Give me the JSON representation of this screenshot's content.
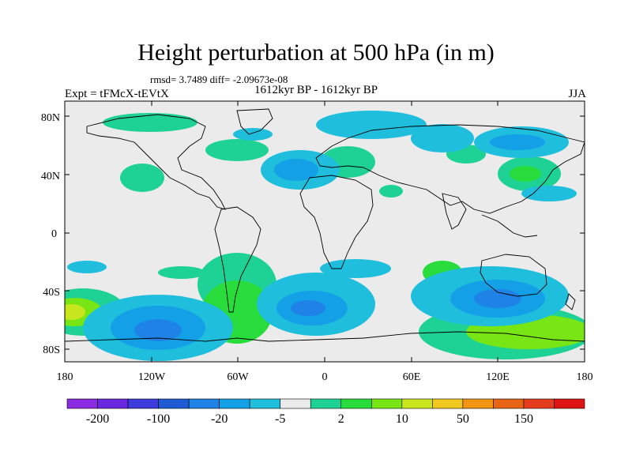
{
  "header": {
    "title": "Height perturbation at 500 hPa (in m)",
    "stats": "rmsd= 3.7489 diff= -2.09673e-08",
    "subtitle": "1612kyr BP - 1612kyr BP",
    "left_label": "Expt = tFMcX-tEVtX",
    "right_label": "JJA"
  },
  "axes": {
    "y_ticks": [
      "80N",
      "40N",
      "0",
      "40S",
      "80S"
    ],
    "x_ticks": [
      "180",
      "120W",
      "60W",
      "0",
      "60E",
      "120E",
      "180"
    ]
  },
  "colorbar": {
    "colors": [
      "#8a2be2",
      "#6a28e0",
      "#3c3cdc",
      "#1e5ad2",
      "#1e82e6",
      "#14a0e6",
      "#1ebedc",
      "#ebebeb",
      "#1ed296",
      "#28dc3c",
      "#78e614",
      "#c8e61e",
      "#f0c81e",
      "#f09614",
      "#e66414",
      "#e63c1e",
      "#dc1414"
    ],
    "labels": [
      "-200",
      "-100",
      "-20",
      "-5",
      "2",
      "10",
      "50",
      "150"
    ]
  },
  "legend_colors": {
    "background": "#ebebeb",
    "neg_light": "#1ebedc",
    "neg_mid": "#14a0e6",
    "neg_dark": "#1e82e6",
    "pos_light": "#1ed296",
    "pos_mid": "#28dc3c",
    "pos_strong": "#78e614",
    "pos_yellow": "#c8e61e"
  }
}
